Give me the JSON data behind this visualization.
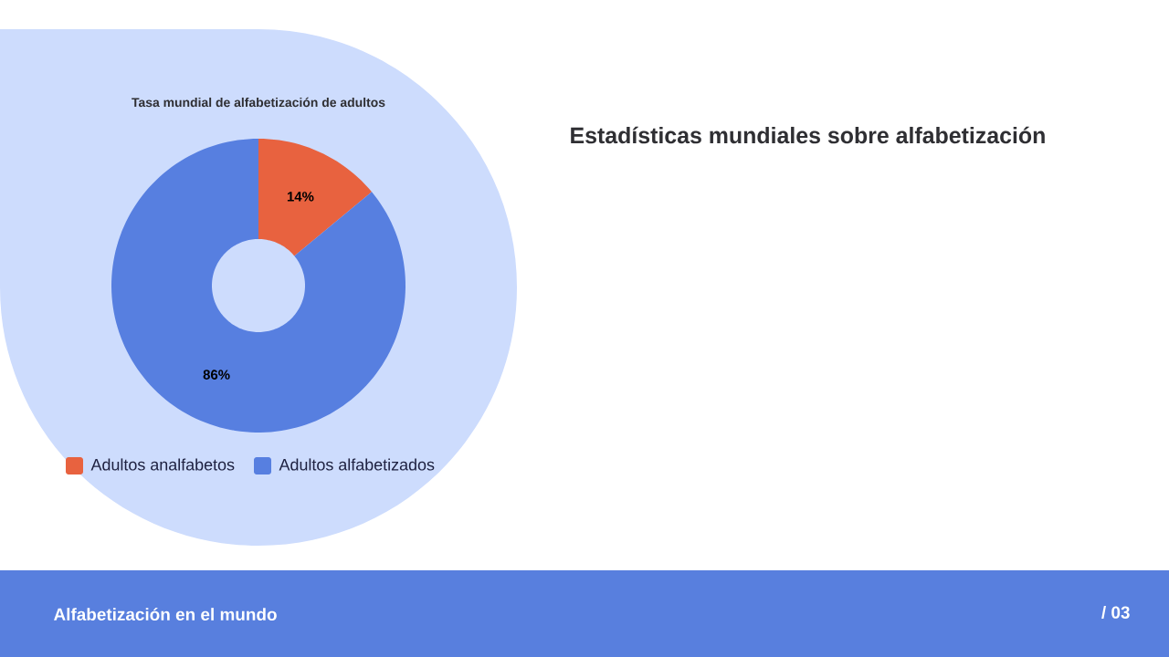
{
  "chart_data": {
    "type": "donut",
    "title": "Tasa mundial de alfabetización de adultos",
    "categories": [
      "Adultos analfabetos",
      "Adultos alfabetizados"
    ],
    "values": [
      14,
      86
    ],
    "colors": [
      "#e8623f",
      "#577fe0"
    ],
    "value_labels": [
      "14%",
      "86%"
    ],
    "legend": "bottom",
    "annotations": [
      "Estadísticas mundiales sobre alfabetización",
      "Alfabetización en el mundo",
      "/ 03"
    ]
  }
}
